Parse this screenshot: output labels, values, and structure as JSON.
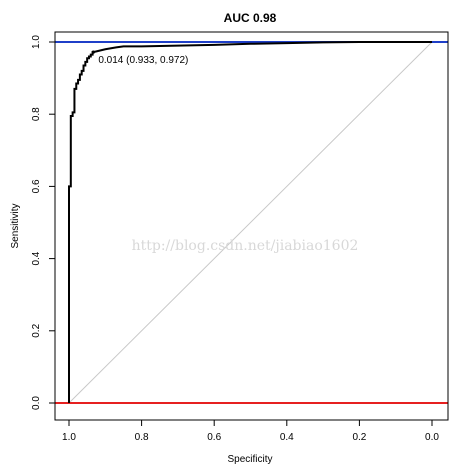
{
  "chart_data": {
    "type": "line",
    "title": "AUC 0.98",
    "xlabel": "Specificity",
    "ylabel": "Sensitivity",
    "xlim": [
      1.0,
      0.0
    ],
    "ylim": [
      0.0,
      1.0
    ],
    "x_reversed": true,
    "grid": false,
    "xticks": [
      "1.0",
      "0.8",
      "0.6",
      "0.4",
      "0.2",
      "0.0"
    ],
    "xtick_values": [
      1.0,
      0.8,
      0.6,
      0.4,
      0.2,
      0.0
    ],
    "yticks": [
      "0.0",
      "0.2",
      "0.4",
      "0.6",
      "0.8",
      "1.0"
    ],
    "ytick_values": [
      0.0,
      0.2,
      0.4,
      0.6,
      0.8,
      1.0
    ],
    "colors": {
      "roc": "#000000",
      "diagonal": "#c8c8c8",
      "top_line": "#1f3fc8",
      "bottom_line": "#e62020",
      "watermark": "#d8d8d8"
    },
    "series": [
      {
        "points": [
          [
            1.0,
            0.0
          ],
          [
            1.0,
            0.6
          ],
          [
            0.995,
            0.6
          ],
          [
            0.995,
            0.795
          ],
          [
            0.99,
            0.795
          ],
          [
            0.99,
            0.805
          ],
          [
            0.985,
            0.805
          ],
          [
            0.985,
            0.87
          ],
          [
            0.98,
            0.87
          ],
          [
            0.98,
            0.885
          ],
          [
            0.975,
            0.885
          ],
          [
            0.975,
            0.895
          ],
          [
            0.97,
            0.895
          ],
          [
            0.97,
            0.91
          ],
          [
            0.965,
            0.91
          ],
          [
            0.965,
            0.92
          ],
          [
            0.96,
            0.92
          ],
          [
            0.96,
            0.935
          ],
          [
            0.955,
            0.935
          ],
          [
            0.955,
            0.945
          ],
          [
            0.95,
            0.945
          ],
          [
            0.95,
            0.955
          ],
          [
            0.945,
            0.955
          ],
          [
            0.945,
            0.96
          ],
          [
            0.94,
            0.96
          ],
          [
            0.94,
            0.965
          ],
          [
            0.935,
            0.965
          ],
          [
            0.935,
            0.972
          ],
          [
            0.933,
            0.972
          ],
          [
            0.92,
            0.975
          ],
          [
            0.9,
            0.98
          ],
          [
            0.87,
            0.985
          ],
          [
            0.85,
            0.988
          ],
          [
            0.8,
            0.988
          ],
          [
            0.7,
            0.99
          ],
          [
            0.6,
            0.992
          ],
          [
            0.5,
            0.995
          ],
          [
            0.4,
            0.997
          ],
          [
            0.3,
            0.999
          ],
          [
            0.2,
            1.0
          ],
          [
            0.0,
            1.0
          ]
        ]
      }
    ],
    "reference_lines": [
      {
        "kind": "diagonal",
        "from": [
          1.0,
          0.0
        ],
        "to": [
          0.0,
          1.0
        ]
      },
      {
        "kind": "horizontal",
        "y": 1.0
      },
      {
        "kind": "horizontal",
        "y": 0.0
      }
    ],
    "annotation": {
      "text": "0.014 (0.933, 0.972)",
      "x": 0.933,
      "y": 0.972
    },
    "watermark": "http://blog.csdn.net/jiabiao1602"
  }
}
